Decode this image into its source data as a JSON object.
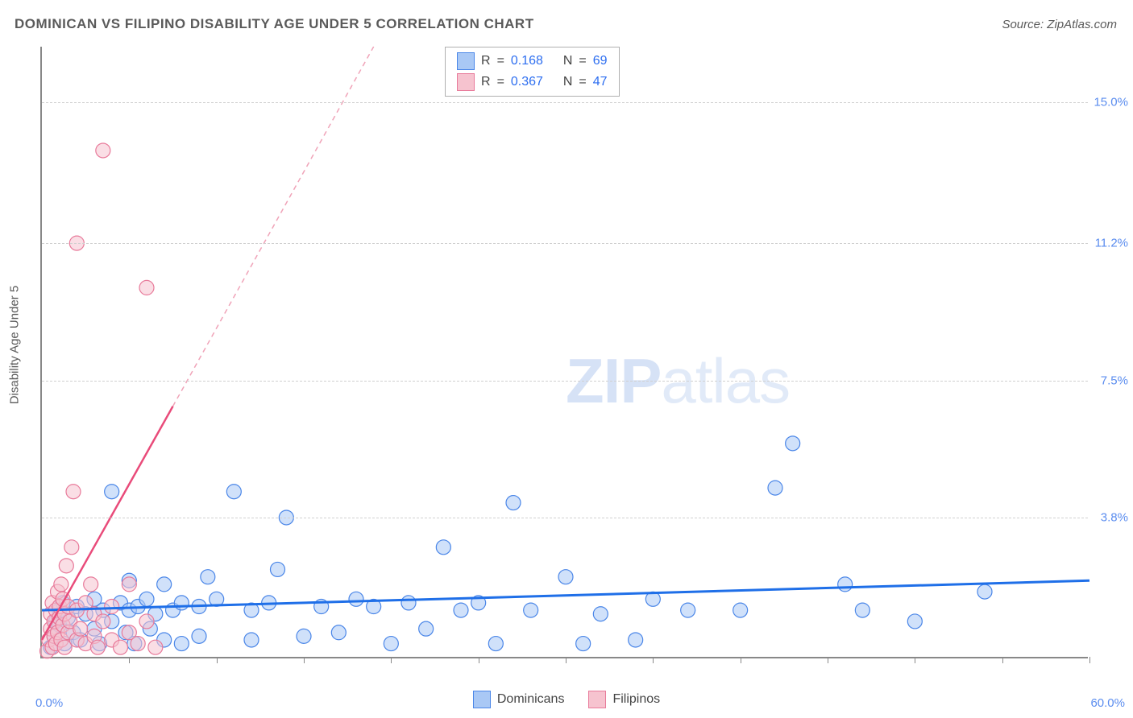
{
  "title": "DOMINICAN VS FILIPINO DISABILITY AGE UNDER 5 CORRELATION CHART",
  "source": "Source: ZipAtlas.com",
  "y_axis_title": "Disability Age Under 5",
  "watermark_bold": "ZIP",
  "watermark_light": "atlas",
  "chart": {
    "type": "scatter",
    "background_color": "#ffffff",
    "grid_color": "#d0d0d0",
    "axis_color": "#888888",
    "tick_label_color": "#5b8def",
    "xlim": [
      0,
      60
    ],
    "ylim": [
      0,
      16.5
    ],
    "x_min_label": "0.0%",
    "x_max_label": "60.0%",
    "y_ticks": [
      {
        "v": 3.8,
        "label": "3.8%"
      },
      {
        "v": 7.5,
        "label": "7.5%"
      },
      {
        "v": 11.2,
        "label": "11.2%"
      },
      {
        "v": 15.0,
        "label": "15.0%"
      }
    ],
    "x_tick_positions": [
      5,
      10,
      15,
      20,
      25,
      30,
      35,
      40,
      45,
      50,
      55,
      60
    ],
    "marker_radius": 9,
    "marker_stroke_width": 1.2,
    "series": [
      {
        "name": "Dominicans",
        "fill": "#a9c8f5",
        "stroke": "#4a86e8",
        "fill_opacity": 0.55,
        "R": "0.168",
        "N": "69",
        "trend": {
          "x1": 0,
          "y1": 1.3,
          "x2": 60,
          "y2": 2.1,
          "color": "#1f6fe8",
          "width": 3,
          "dash": "none"
        },
        "points": [
          [
            0.5,
            0.3
          ],
          [
            0.7,
            0.6
          ],
          [
            0.8,
            1.0
          ],
          [
            1.0,
            1.3
          ],
          [
            1.0,
            0.9
          ],
          [
            1.2,
            1.5
          ],
          [
            1.3,
            0.4
          ],
          [
            1.5,
            1.1
          ],
          [
            1.8,
            0.7
          ],
          [
            2.0,
            1.4
          ],
          [
            2.2,
            0.5
          ],
          [
            2.5,
            1.2
          ],
          [
            3.0,
            0.8
          ],
          [
            3.0,
            1.6
          ],
          [
            3.3,
            0.4
          ],
          [
            3.5,
            1.3
          ],
          [
            4.0,
            1.0
          ],
          [
            4.0,
            4.5
          ],
          [
            4.5,
            1.5
          ],
          [
            4.8,
            0.7
          ],
          [
            5.0,
            1.3
          ],
          [
            5.0,
            2.1
          ],
          [
            5.3,
            0.4
          ],
          [
            5.5,
            1.4
          ],
          [
            6.0,
            1.6
          ],
          [
            6.2,
            0.8
          ],
          [
            6.5,
            1.2
          ],
          [
            7.0,
            2.0
          ],
          [
            7.0,
            0.5
          ],
          [
            7.5,
            1.3
          ],
          [
            8.0,
            1.5
          ],
          [
            8.0,
            0.4
          ],
          [
            9.0,
            1.4
          ],
          [
            9.0,
            0.6
          ],
          [
            9.5,
            2.2
          ],
          [
            10.0,
            1.6
          ],
          [
            11.0,
            4.5
          ],
          [
            12.0,
            1.3
          ],
          [
            12.0,
            0.5
          ],
          [
            13.0,
            1.5
          ],
          [
            13.5,
            2.4
          ],
          [
            14.0,
            3.8
          ],
          [
            15.0,
            0.6
          ],
          [
            16.0,
            1.4
          ],
          [
            17.0,
            0.7
          ],
          [
            18.0,
            1.6
          ],
          [
            19.0,
            1.4
          ],
          [
            20.0,
            0.4
          ],
          [
            21.0,
            1.5
          ],
          [
            22.0,
            0.8
          ],
          [
            23.0,
            3.0
          ],
          [
            24.0,
            1.3
          ],
          [
            25.0,
            1.5
          ],
          [
            26.0,
            0.4
          ],
          [
            27.0,
            4.2
          ],
          [
            28.0,
            1.3
          ],
          [
            30.0,
            2.2
          ],
          [
            31.0,
            0.4
          ],
          [
            32.0,
            1.2
          ],
          [
            34.0,
            0.5
          ],
          [
            35.0,
            1.6
          ],
          [
            37.0,
            1.3
          ],
          [
            40.0,
            1.3
          ],
          [
            42.0,
            4.6
          ],
          [
            43.0,
            5.8
          ],
          [
            46.0,
            2.0
          ],
          [
            47.0,
            1.3
          ],
          [
            50.0,
            1.0
          ],
          [
            54.0,
            1.8
          ]
        ]
      },
      {
        "name": "Filipinos",
        "fill": "#f6c3cf",
        "stroke": "#e87a9a",
        "fill_opacity": 0.55,
        "R": "0.367",
        "N": "47",
        "trend": {
          "x1": 0,
          "y1": 0.5,
          "x2": 7.5,
          "y2": 6.8,
          "color": "#e94b7a",
          "width": 2.5,
          "dash": "none"
        },
        "trend_ext": {
          "x1": 7.5,
          "y1": 6.8,
          "x2": 19.0,
          "y2": 16.5,
          "color": "#f0a3b8",
          "width": 1.5,
          "dash": "6 5"
        },
        "points": [
          [
            0.3,
            0.2
          ],
          [
            0.4,
            0.5
          ],
          [
            0.5,
            0.8
          ],
          [
            0.5,
            1.2
          ],
          [
            0.6,
            0.3
          ],
          [
            0.6,
            1.5
          ],
          [
            0.7,
            0.6
          ],
          [
            0.7,
            1.0
          ],
          [
            0.8,
            1.3
          ],
          [
            0.8,
            0.4
          ],
          [
            0.9,
            1.8
          ],
          [
            0.9,
            0.7
          ],
          [
            1.0,
            1.1
          ],
          [
            1.0,
            1.4
          ],
          [
            1.1,
            0.5
          ],
          [
            1.1,
            2.0
          ],
          [
            1.2,
            0.9
          ],
          [
            1.2,
            1.6
          ],
          [
            1.3,
            0.3
          ],
          [
            1.3,
            1.2
          ],
          [
            1.4,
            2.5
          ],
          [
            1.5,
            0.7
          ],
          [
            1.5,
            1.4
          ],
          [
            1.6,
            1.0
          ],
          [
            1.7,
            3.0
          ],
          [
            1.8,
            4.5
          ],
          [
            2.0,
            0.5
          ],
          [
            2.0,
            1.3
          ],
          [
            2.0,
            11.2
          ],
          [
            2.2,
            0.8
          ],
          [
            2.5,
            1.5
          ],
          [
            2.5,
            0.4
          ],
          [
            2.8,
            2.0
          ],
          [
            3.0,
            0.6
          ],
          [
            3.0,
            1.2
          ],
          [
            3.2,
            0.3
          ],
          [
            3.5,
            13.7
          ],
          [
            3.5,
            1.0
          ],
          [
            4.0,
            0.5
          ],
          [
            4.0,
            1.4
          ],
          [
            4.5,
            0.3
          ],
          [
            5.0,
            0.7
          ],
          [
            5.0,
            2.0
          ],
          [
            5.5,
            0.4
          ],
          [
            6.0,
            1.0
          ],
          [
            6.0,
            10.0
          ],
          [
            6.5,
            0.3
          ]
        ]
      }
    ]
  },
  "legend": {
    "labels": {
      "R": "R",
      "N": "N",
      "eq": "="
    }
  },
  "bottom_legend": [
    {
      "label": "Dominicans",
      "fill": "#a9c8f5",
      "stroke": "#4a86e8"
    },
    {
      "label": "Filipinos",
      "fill": "#f6c3cf",
      "stroke": "#e87a9a"
    }
  ]
}
